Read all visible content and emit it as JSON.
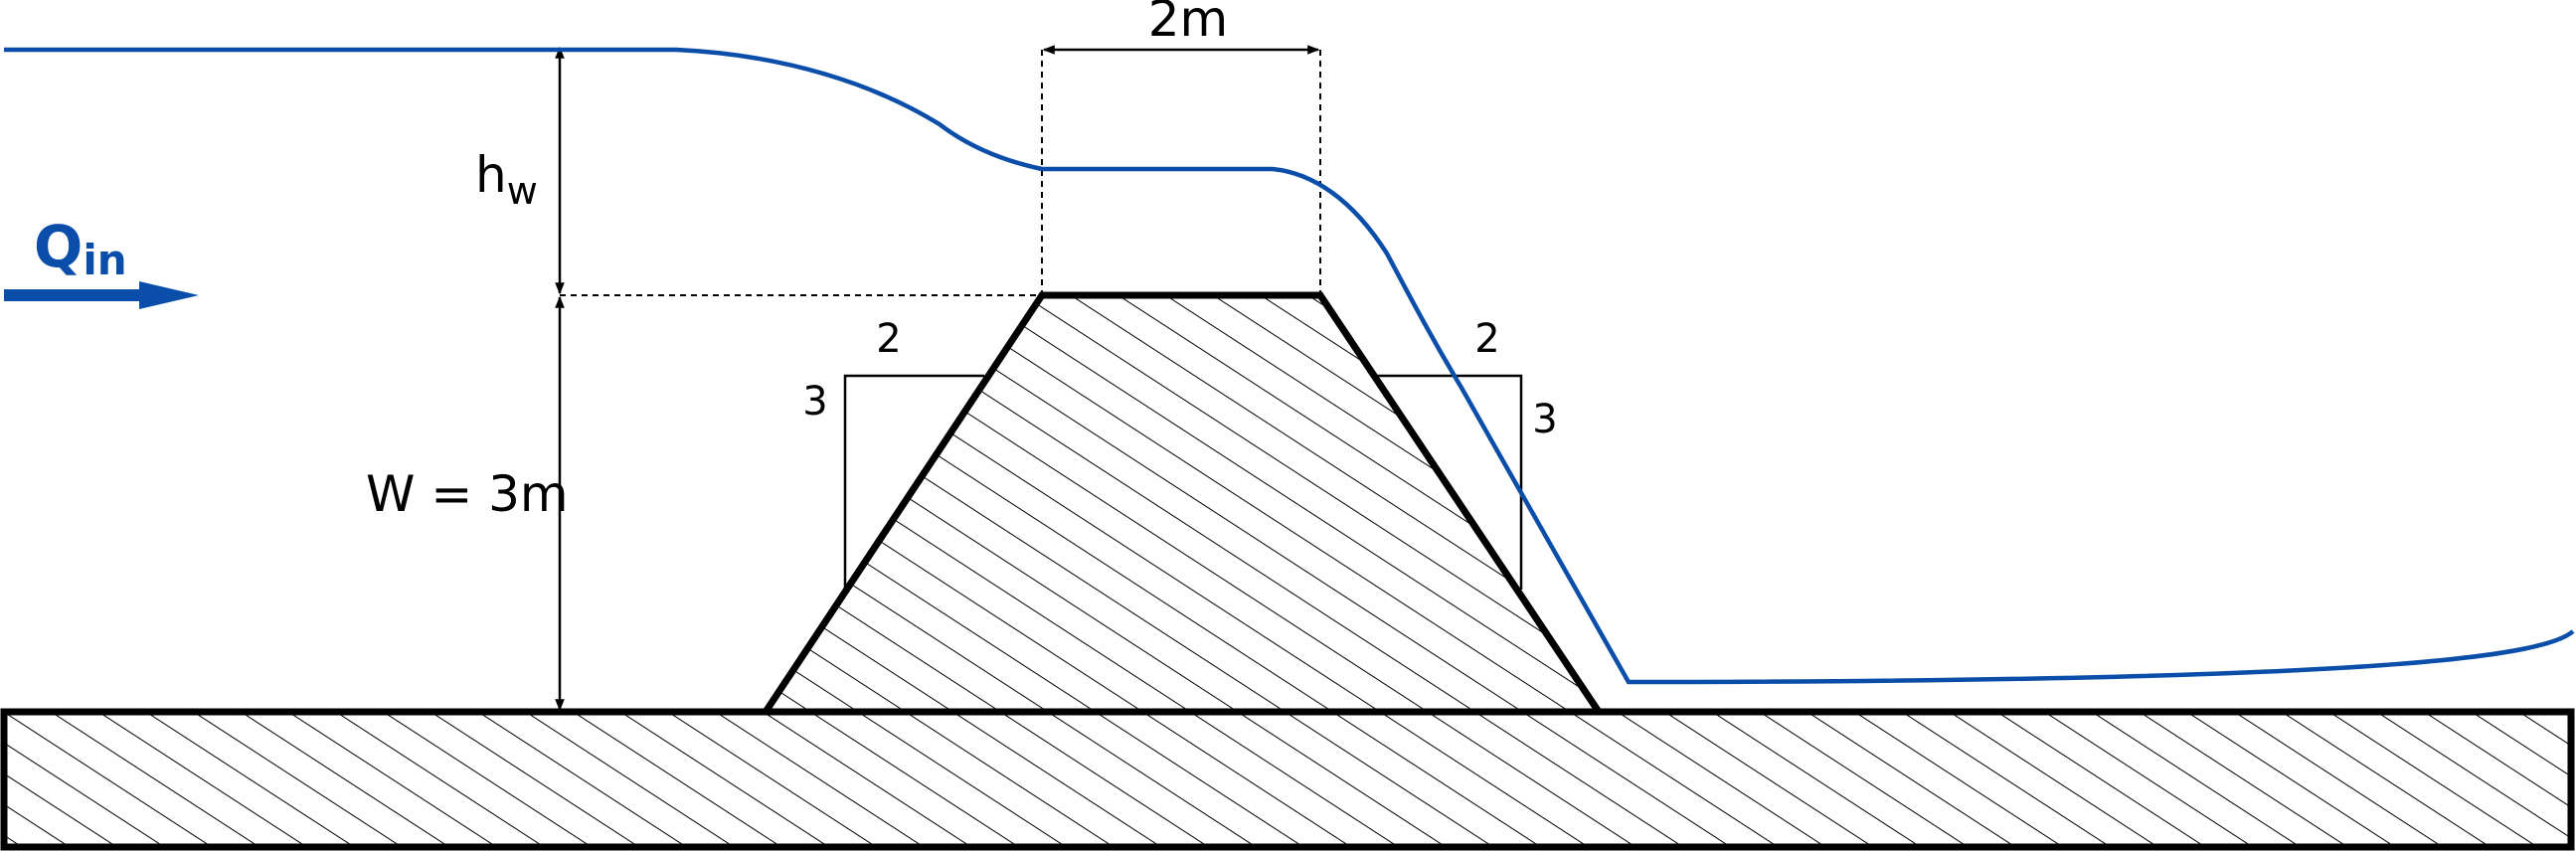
{
  "labels": {
    "crest_width": "2m",
    "head_symbol": "h",
    "head_subscript": "w",
    "weir_height": "W = 3m",
    "flow_symbol": "Q",
    "flow_subscript": "in",
    "upstream_slope_run": "2",
    "upstream_slope_rise": "3",
    "downstream_slope_run": "2",
    "downstream_slope_rise": "3"
  },
  "colors": {
    "water": "#0b4eaa",
    "structure": "#000000",
    "background": "#ffffff"
  },
  "icons": {
    "flow_arrow": "right-arrow-icon"
  }
}
